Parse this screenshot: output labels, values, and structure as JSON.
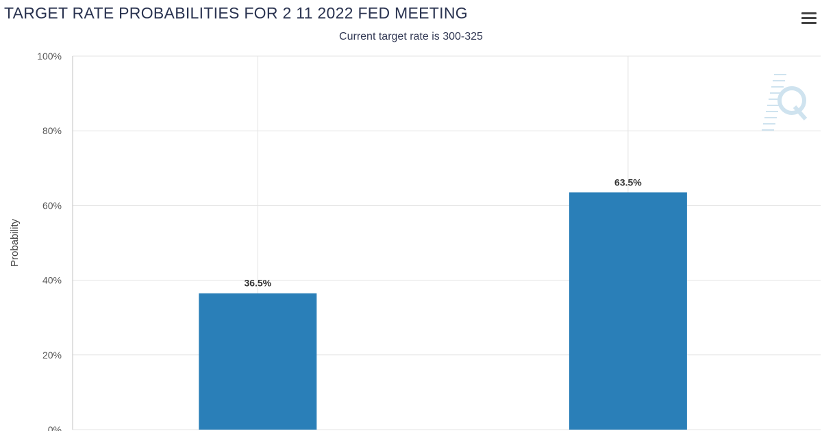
{
  "header": {
    "title": "TARGET RATE PROBABILITIES FOR 2 11 2022 FED MEETING",
    "subtitle": "Current target rate is 300-325",
    "menu_icon": "hamburger-menu-icon",
    "watermark_icon": "cme-q-logo-icon"
  },
  "colors": {
    "bar": "#2a7fb8",
    "grid": "#e3e3e3",
    "axis": "#c0c0c0",
    "watermark": "#cfe3ef"
  },
  "chart_data": {
    "type": "bar",
    "title": "TARGET RATE PROBABILITIES FOR 2 11 2022 FED MEETING",
    "subtitle": "Current target rate is 300-325",
    "categories": [
      "",
      ""
    ],
    "values": [
      36.5,
      63.5
    ],
    "data_labels": [
      "36.5%",
      "63.5%"
    ],
    "xlabel": "",
    "ylabel": "Probability",
    "ylim": [
      0,
      100
    ],
    "yticks": [
      0,
      20,
      40,
      60,
      80,
      100
    ],
    "ytick_labels": [
      "0%",
      "20%",
      "40%",
      "60%",
      "80%",
      "100%"
    ],
    "grid": true,
    "legend": "none"
  }
}
